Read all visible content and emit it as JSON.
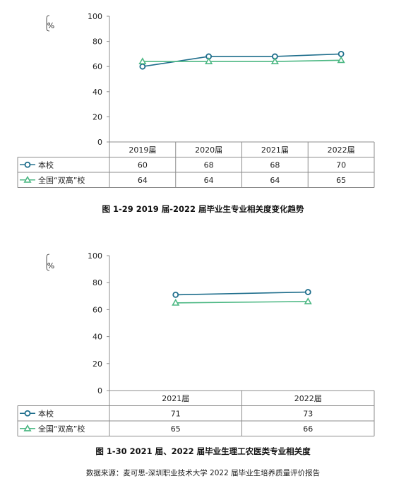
{
  "chart_data": [
    {
      "type": "line",
      "caption": "图 1-29 2019 届-2022 届毕业生专业相关度变化趋势",
      "unit": "%",
      "ylim": [
        0,
        100
      ],
      "yticks": [
        0,
        20,
        40,
        60,
        80,
        100
      ],
      "categories": [
        "2019届",
        "2020届",
        "2021届",
        "2022届"
      ],
      "series": [
        {
          "name": "本校",
          "values": [
            60,
            68,
            68,
            70
          ],
          "color": "#1f6e8c",
          "marker": "circle"
        },
        {
          "name": "全国“双高”校",
          "values": [
            64,
            64,
            64,
            65
          ],
          "color": "#4db884",
          "marker": "triangle"
        }
      ]
    },
    {
      "type": "line",
      "caption": "图 1-30 2021 届、2022 届毕业生理工农医类专业相关度",
      "unit": "%",
      "ylim": [
        0,
        100
      ],
      "yticks": [
        0,
        20,
        40,
        60,
        80,
        100
      ],
      "categories": [
        "2021届",
        "2022届"
      ],
      "series": [
        {
          "name": "本校",
          "values": [
            71,
            73
          ],
          "color": "#1f6e8c",
          "marker": "circle"
        },
        {
          "name": "全国“双高”校",
          "values": [
            65,
            66
          ],
          "color": "#4db884",
          "marker": "triangle"
        }
      ]
    }
  ],
  "source_note": "数据来源：麦可思-深圳职业技术大学 2022 届毕业生培养质量评价报告"
}
